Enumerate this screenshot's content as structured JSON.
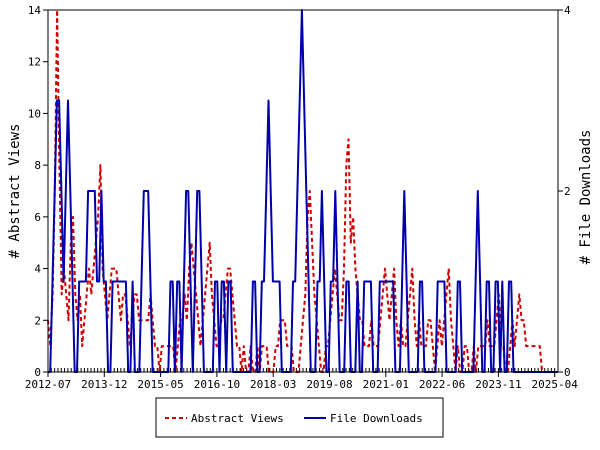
{
  "chart_data": {
    "type": "line",
    "x_ticks": [
      "2012-07",
      "2013-12",
      "2015-05",
      "2016-10",
      "2018-03",
      "2019-08",
      "2021-01",
      "2022-06",
      "2023-11",
      "2025-04"
    ],
    "x_range": [
      "2012-07",
      "2025-05"
    ],
    "ylabel_left": "# Abstract Views",
    "ylabel_right": "# File Downloads",
    "ylim_left": [
      0,
      14
    ],
    "yticks_left": [
      "0",
      "2",
      "4",
      "6",
      "8",
      "10",
      "12",
      "14"
    ],
    "ylim_right": [
      0,
      4
    ],
    "yticks_right": [
      "0",
      "2",
      "4"
    ],
    "legend_position": "bottom-center",
    "colors": {
      "abstract_views": "#cc0000",
      "file_downloads": "#0000aa"
    },
    "series": [
      {
        "name": "Abstract Views",
        "axis": "left",
        "style": "dashed",
        "values": [
          2,
          1,
          3,
          7,
          14,
          8,
          3,
          4,
          3,
          2,
          5,
          6,
          3,
          2,
          3,
          1,
          2,
          3,
          4,
          3,
          4,
          5,
          6,
          8,
          4,
          3,
          2,
          3,
          4,
          4,
          4,
          3,
          2,
          3,
          3,
          2,
          1,
          2,
          3,
          3,
          2,
          2,
          2,
          2,
          2,
          3,
          2,
          1,
          1,
          0,
          1,
          1,
          1,
          1,
          1,
          1,
          0,
          1,
          2,
          2,
          3,
          2,
          4,
          5,
          4,
          3,
          2,
          1,
          2,
          3,
          4,
          5,
          3,
          2,
          1,
          1,
          2,
          2,
          3,
          4,
          4,
          3,
          2,
          1,
          1,
          0,
          1,
          0,
          0,
          1,
          0,
          0,
          1,
          0,
          1,
          1,
          1,
          0,
          0,
          0,
          1,
          1,
          2,
          2,
          2,
          1,
          1,
          1,
          0,
          0,
          0,
          1,
          2,
          3,
          6,
          7,
          5,
          3,
          2,
          1,
          0,
          0,
          1,
          1,
          2,
          3,
          4,
          3,
          2,
          2,
          4,
          8,
          9,
          5,
          6,
          4,
          3,
          2,
          2,
          1,
          1,
          1,
          2,
          1,
          1,
          1,
          2,
          3,
          4,
          3,
          2,
          3,
          4,
          2,
          1,
          2,
          1,
          1,
          2,
          3,
          4,
          2,
          1,
          2,
          1,
          1,
          1,
          2,
          2,
          1,
          0,
          1,
          2,
          1,
          2,
          3,
          4,
          2,
          1,
          0,
          1,
          0,
          0,
          1,
          1,
          0,
          0,
          1,
          0,
          1,
          1,
          1,
          1,
          2,
          1,
          1,
          1,
          2,
          3,
          1,
          1,
          0,
          0,
          1,
          2,
          1,
          2,
          3,
          2,
          2,
          1,
          1,
          1,
          1,
          1,
          1,
          1,
          0,
          0,
          0,
          0,
          0,
          0,
          0,
          0
        ]
      },
      {
        "name": "File Downloads",
        "axis": "right",
        "style": "solid",
        "values": [
          0,
          0,
          1,
          2,
          3,
          3,
          2,
          1,
          2,
          3,
          2,
          1,
          0,
          0,
          1,
          1,
          1,
          1,
          2,
          2,
          2,
          2,
          1,
          1,
          2,
          1,
          1,
          0,
          0,
          1,
          1,
          1,
          1,
          1,
          1,
          1,
          0,
          0,
          1,
          0,
          0,
          0,
          1,
          2,
          2,
          2,
          1,
          0,
          0,
          0,
          0,
          0,
          0,
          0,
          0,
          1,
          1,
          0,
          1,
          1,
          0,
          1,
          2,
          2,
          1,
          0,
          1,
          2,
          2,
          1,
          0,
          0,
          0,
          0,
          0,
          1,
          1,
          0,
          1,
          1,
          0,
          1,
          1,
          0,
          0,
          0,
          0,
          0,
          0,
          0,
          0,
          0,
          1,
          1,
          0,
          0,
          1,
          1,
          2,
          3,
          2,
          1,
          1,
          1,
          1,
          0,
          0,
          0,
          0,
          0,
          1,
          1,
          2,
          3,
          4,
          3,
          2,
          1,
          0,
          0,
          0,
          1,
          1,
          2,
          1,
          0,
          0,
          1,
          1,
          2,
          1,
          0,
          0,
          0,
          1,
          1,
          0,
          0,
          0,
          1,
          0,
          0,
          1,
          1,
          1,
          1,
          0,
          0,
          0,
          1,
          1,
          1,
          1,
          1,
          1,
          1,
          0,
          0,
          0,
          1,
          2,
          1,
          0,
          0,
          0,
          0,
          0,
          1,
          1,
          0,
          0,
          0,
          0,
          0,
          0,
          1,
          1,
          1,
          1,
          0,
          0,
          0,
          0,
          0,
          1,
          1,
          0,
          0,
          0,
          0,
          0,
          0,
          1,
          2,
          1,
          0,
          0,
          1,
          1,
          0,
          0,
          1,
          1,
          0,
          1,
          0,
          0,
          1,
          1,
          0,
          0,
          0,
          0,
          0,
          0,
          0,
          0,
          0,
          0,
          0,
          0,
          0,
          0,
          0,
          0,
          0,
          0,
          0,
          0,
          0
        ]
      }
    ]
  }
}
